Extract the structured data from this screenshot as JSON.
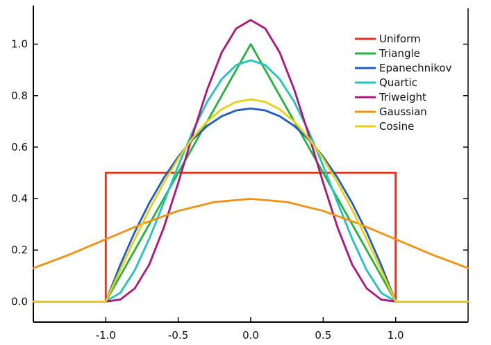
{
  "chart_data": {
    "type": "line",
    "title": "",
    "xlabel": "",
    "ylabel": "",
    "xlim": [
      -1.5,
      1.5
    ],
    "ylim": [
      -0.08,
      1.15
    ],
    "x_ticks": [
      -1.0,
      -0.5,
      0.0,
      0.5,
      1.0
    ],
    "x_tick_labels": [
      "-1.0",
      "-0.5",
      "0.0",
      "0.5",
      "1.0"
    ],
    "y_ticks": [
      0.0,
      0.2,
      0.4,
      0.6,
      0.8,
      1.0
    ],
    "y_tick_labels": [
      "0.0",
      "0.2",
      "0.4",
      "0.6",
      "0.8",
      "1.0"
    ],
    "grid": false,
    "legend_position": "top-right",
    "series": [
      {
        "name": "Uniform",
        "color": "#e8321e",
        "x": [
          -1.5,
          -1.0,
          -1.0,
          1.0,
          1.0,
          1.5
        ],
        "y": [
          0.0,
          0.0,
          0.5,
          0.5,
          0.0,
          0.0
        ]
      },
      {
        "name": "Triangle",
        "color": "#22b43a",
        "x": [
          -1.5,
          -1.0,
          0.0,
          1.0,
          1.5
        ],
        "y": [
          0.0,
          0.0,
          1.0,
          0.0,
          0.0
        ]
      },
      {
        "name": "Epanechnikov",
        "color": "#1f5bc8",
        "x": [
          -1.5,
          -1.0,
          -0.9,
          -0.8,
          -0.7,
          -0.6,
          -0.5,
          -0.4,
          -0.3,
          -0.2,
          -0.1,
          0.0,
          0.1,
          0.2,
          0.3,
          0.4,
          0.5,
          0.6,
          0.7,
          0.8,
          0.9,
          1.0,
          1.5
        ],
        "y": [
          0.0,
          0.0,
          0.1425,
          0.27,
          0.3825,
          0.48,
          0.5625,
          0.63,
          0.6825,
          0.72,
          0.7425,
          0.75,
          0.7425,
          0.72,
          0.6825,
          0.63,
          0.5625,
          0.48,
          0.3825,
          0.27,
          0.1425,
          0.0,
          0.0
        ]
      },
      {
        "name": "Quartic",
        "color": "#1fc4c0",
        "x": [
          -1.5,
          -1.0,
          -0.9,
          -0.8,
          -0.7,
          -0.6,
          -0.5,
          -0.4,
          -0.3,
          -0.2,
          -0.1,
          0.0,
          0.1,
          0.2,
          0.3,
          0.4,
          0.5,
          0.6,
          0.7,
          0.8,
          0.9,
          1.0,
          1.5
        ],
        "y": [
          0.0,
          0.0,
          0.0338,
          0.1215,
          0.2438,
          0.384,
          0.5273,
          0.6615,
          0.7763,
          0.864,
          0.9188,
          0.9375,
          0.9188,
          0.864,
          0.7763,
          0.6615,
          0.5273,
          0.384,
          0.2438,
          0.1215,
          0.0338,
          0.0,
          0.0
        ]
      },
      {
        "name": "Triweight",
        "color": "#b0127e",
        "x": [
          -1.5,
          -1.0,
          -0.9,
          -0.8,
          -0.7,
          -0.6,
          -0.5,
          -0.4,
          -0.3,
          -0.2,
          -0.1,
          0.0,
          0.1,
          0.2,
          0.3,
          0.4,
          0.5,
          0.6,
          0.7,
          0.8,
          0.9,
          1.0,
          1.5
        ],
        "y": [
          0.0,
          0.0,
          0.0075,
          0.051,
          0.1437,
          0.2867,
          0.4614,
          0.6482,
          0.824,
          0.9679,
          1.0609,
          1.0938,
          1.0609,
          0.9679,
          0.824,
          0.6482,
          0.4614,
          0.2867,
          0.1437,
          0.051,
          0.0075,
          0.0,
          0.0
        ]
      },
      {
        "name": "Gaussian",
        "color": "#f5900e",
        "x": [
          -1.5,
          -1.25,
          -1.0,
          -0.75,
          -0.5,
          -0.25,
          0.0,
          0.25,
          0.5,
          0.75,
          1.0,
          1.25,
          1.5
        ],
        "y": [
          0.1295,
          0.1826,
          0.242,
          0.3011,
          0.3521,
          0.3867,
          0.3989,
          0.3867,
          0.3521,
          0.3011,
          0.242,
          0.1826,
          0.1295
        ]
      },
      {
        "name": "Cosine",
        "color": "#e8d210",
        "x": [
          -1.5,
          -1.0,
          -0.9,
          -0.8,
          -0.7,
          -0.6,
          -0.5,
          -0.4,
          -0.3,
          -0.2,
          -0.1,
          0.0,
          0.1,
          0.2,
          0.3,
          0.4,
          0.5,
          0.6,
          0.7,
          0.8,
          0.9,
          1.0,
          1.5
        ],
        "y": [
          0.0,
          0.0,
          0.1229,
          0.2427,
          0.3566,
          0.4617,
          0.5554,
          0.6354,
          0.6998,
          0.747,
          0.7757,
          0.7854,
          0.7757,
          0.747,
          0.6998,
          0.6354,
          0.5554,
          0.4617,
          0.3566,
          0.2427,
          0.1229,
          0.0,
          0.0
        ]
      }
    ]
  }
}
